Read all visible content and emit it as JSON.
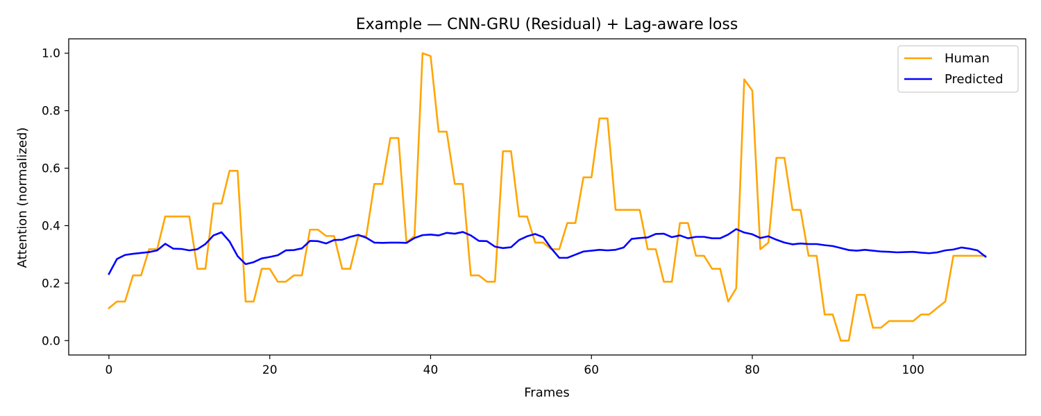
{
  "chart_data": {
    "type": "line",
    "title": "Example — CNN-GRU (Residual) + Lag-aware loss",
    "xlabel": "Frames",
    "ylabel": "Attention (normalized)",
    "xlim": [
      -5,
      114
    ],
    "ylim": [
      -0.05,
      1.05
    ],
    "xticks": [
      0,
      20,
      40,
      60,
      80,
      100
    ],
    "yticks": [
      0.0,
      0.2,
      0.4,
      0.6,
      0.8,
      1.0
    ],
    "xtick_labels": [
      "0",
      "20",
      "40",
      "60",
      "80",
      "100"
    ],
    "ytick_labels": [
      "0.0",
      "0.2",
      "0.4",
      "0.6",
      "0.8",
      "1.0"
    ],
    "grid": false,
    "legend_position": "top-right",
    "series": [
      {
        "name": "Human",
        "color": "#ffa500",
        "x": [
          0,
          1,
          2,
          3,
          4,
          5,
          6,
          7,
          8,
          9,
          10,
          11,
          12,
          13,
          14,
          15,
          16,
          17,
          18,
          19,
          20,
          21,
          22,
          23,
          24,
          25,
          26,
          27,
          28,
          29,
          30,
          31,
          32,
          33,
          34,
          35,
          36,
          37,
          38,
          39,
          40,
          41,
          42,
          43,
          44,
          45,
          46,
          47,
          48,
          49,
          50,
          51,
          52,
          53,
          54,
          55,
          56,
          57,
          58,
          59,
          60,
          61,
          62,
          63,
          64,
          65,
          66,
          67,
          68,
          69,
          70,
          71,
          72,
          73,
          74,
          75,
          76,
          77,
          78,
          79,
          80,
          81,
          82,
          83,
          84,
          85,
          86,
          87,
          88,
          89,
          90,
          91,
          92,
          93,
          94,
          95,
          96,
          97,
          98,
          99,
          100,
          101,
          102,
          103,
          104,
          105,
          106,
          107,
          108,
          109
        ],
        "values": [
          0.113,
          0.136,
          0.136,
          0.227,
          0.227,
          0.318,
          0.318,
          0.432,
          0.432,
          0.432,
          0.432,
          0.25,
          0.25,
          0.477,
          0.477,
          0.591,
          0.591,
          0.136,
          0.136,
          0.25,
          0.25,
          0.205,
          0.205,
          0.227,
          0.227,
          0.386,
          0.386,
          0.364,
          0.364,
          0.25,
          0.25,
          0.364,
          0.364,
          0.545,
          0.545,
          0.705,
          0.705,
          0.341,
          0.364,
          1.0,
          0.99,
          0.727,
          0.727,
          0.545,
          0.545,
          0.227,
          0.227,
          0.205,
          0.205,
          0.659,
          0.659,
          0.432,
          0.432,
          0.341,
          0.341,
          0.318,
          0.318,
          0.409,
          0.409,
          0.568,
          0.568,
          0.773,
          0.773,
          0.455,
          0.455,
          0.455,
          0.455,
          0.318,
          0.318,
          0.205,
          0.205,
          0.409,
          0.409,
          0.295,
          0.295,
          0.25,
          0.25,
          0.136,
          0.182,
          0.909,
          0.87,
          0.318,
          0.341,
          0.636,
          0.636,
          0.455,
          0.455,
          0.295,
          0.295,
          0.091,
          0.091,
          0.0,
          0.0,
          0.159,
          0.159,
          0.045,
          0.045,
          0.068,
          0.068,
          0.068,
          0.068,
          0.091,
          0.091,
          0.114,
          0.136,
          0.295,
          0.295,
          0.295,
          0.295,
          0.295
        ]
      },
      {
        "name": "Predicted",
        "color": "#0000ff",
        "x": [
          0,
          1,
          2,
          3,
          4,
          5,
          6,
          7,
          8,
          9,
          10,
          11,
          12,
          13,
          14,
          15,
          16,
          17,
          18,
          19,
          20,
          21,
          22,
          23,
          24,
          25,
          26,
          27,
          28,
          29,
          30,
          31,
          32,
          33,
          34,
          35,
          36,
          37,
          38,
          39,
          40,
          41,
          42,
          43,
          44,
          45,
          46,
          47,
          48,
          49,
          50,
          51,
          52,
          53,
          54,
          55,
          56,
          57,
          58,
          59,
          60,
          61,
          62,
          63,
          64,
          65,
          66,
          67,
          68,
          69,
          70,
          71,
          72,
          73,
          74,
          75,
          76,
          77,
          78,
          79,
          80,
          81,
          82,
          83,
          84,
          85,
          86,
          87,
          88,
          89,
          90,
          91,
          92,
          93,
          94,
          95,
          96,
          97,
          98,
          99,
          100,
          101,
          102,
          103,
          104,
          105,
          106,
          107,
          108,
          109
        ],
        "values": [
          0.232,
          0.284,
          0.298,
          0.302,
          0.305,
          0.308,
          0.314,
          0.337,
          0.32,
          0.319,
          0.314,
          0.318,
          0.336,
          0.366,
          0.377,
          0.345,
          0.294,
          0.266,
          0.273,
          0.286,
          0.291,
          0.297,
          0.314,
          0.315,
          0.321,
          0.347,
          0.346,
          0.338,
          0.35,
          0.351,
          0.361,
          0.368,
          0.358,
          0.341,
          0.34,
          0.341,
          0.341,
          0.34,
          0.357,
          0.367,
          0.369,
          0.366,
          0.375,
          0.372,
          0.378,
          0.366,
          0.347,
          0.346,
          0.327,
          0.322,
          0.325,
          0.35,
          0.363,
          0.371,
          0.36,
          0.321,
          0.288,
          0.288,
          0.299,
          0.31,
          0.313,
          0.316,
          0.314,
          0.316,
          0.324,
          0.354,
          0.357,
          0.359,
          0.371,
          0.372,
          0.36,
          0.366,
          0.356,
          0.361,
          0.361,
          0.356,
          0.356,
          0.369,
          0.388,
          0.376,
          0.37,
          0.357,
          0.363,
          0.351,
          0.341,
          0.335,
          0.338,
          0.336,
          0.336,
          0.332,
          0.329,
          0.322,
          0.315,
          0.313,
          0.316,
          0.313,
          0.31,
          0.309,
          0.307,
          0.308,
          0.309,
          0.306,
          0.304,
          0.307,
          0.314,
          0.317,
          0.324,
          0.32,
          0.314,
          0.292
        ]
      }
    ]
  }
}
